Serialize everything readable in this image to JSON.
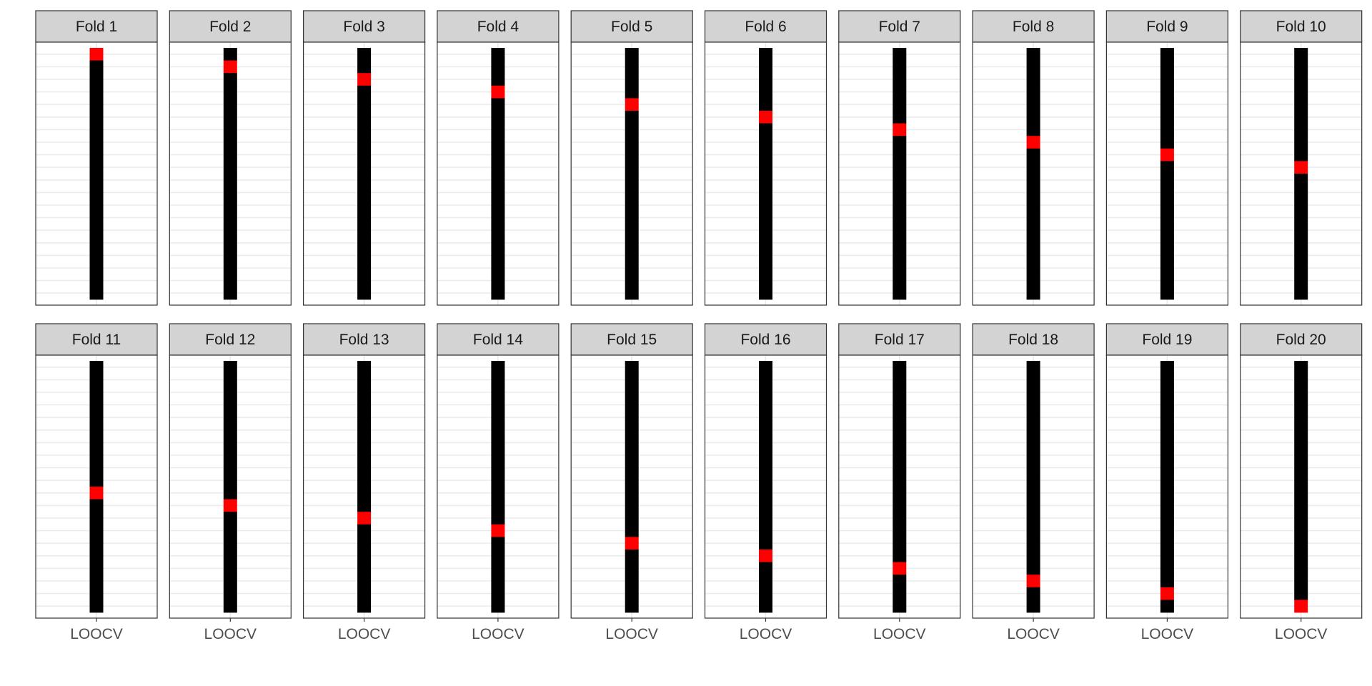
{
  "chart_data": {
    "type": "heatmap",
    "title": "",
    "xlabel": "",
    "ylabel": "",
    "x_tick": "LOOCV",
    "n_observations": 20,
    "panels": [
      {
        "label": "Fold 1",
        "test_index": 1
      },
      {
        "label": "Fold 2",
        "test_index": 2
      },
      {
        "label": "Fold 3",
        "test_index": 3
      },
      {
        "label": "Fold 4",
        "test_index": 4
      },
      {
        "label": "Fold 5",
        "test_index": 5
      },
      {
        "label": "Fold 6",
        "test_index": 6
      },
      {
        "label": "Fold 7",
        "test_index": 7
      },
      {
        "label": "Fold 8",
        "test_index": 8
      },
      {
        "label": "Fold 9",
        "test_index": 9
      },
      {
        "label": "Fold 10",
        "test_index": 10
      },
      {
        "label": "Fold 11",
        "test_index": 11
      },
      {
        "label": "Fold 12",
        "test_index": 12
      },
      {
        "label": "Fold 13",
        "test_index": 13
      },
      {
        "label": "Fold 14",
        "test_index": 14
      },
      {
        "label": "Fold 15",
        "test_index": 15
      },
      {
        "label": "Fold 16",
        "test_index": 16
      },
      {
        "label": "Fold 17",
        "test_index": 17
      },
      {
        "label": "Fold 18",
        "test_index": 18
      },
      {
        "label": "Fold 19",
        "test_index": 19
      },
      {
        "label": "Fold 20",
        "test_index": 20
      }
    ],
    "colors": {
      "train": "#000000",
      "test": "#ff0000",
      "strip_fill": "#d3d3d3",
      "panel_border": "#333333",
      "grid": "#ebebeb"
    },
    "grid": true,
    "legend": "none"
  }
}
